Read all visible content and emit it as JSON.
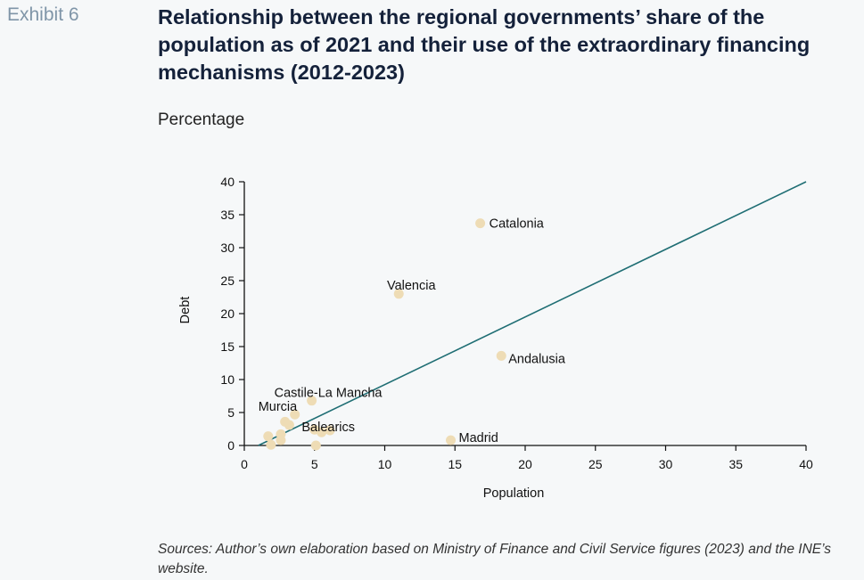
{
  "exhibit_label": "Exhibit 6",
  "title": "Relationship between the regional governments’ share of the population as of 2021 and their use of the extraordinary financing mechanisms (2012-2023)",
  "subtitle": "Percentage",
  "source": "Sources: Author’s own elaboration based on Ministry of Finance and Civil Service figures (2023) and the INE’s website.",
  "chart_data": {
    "type": "scatter",
    "xlabel": "Population",
    "ylabel": "Debt",
    "xlim": [
      0,
      40
    ],
    "ylim": [
      0,
      40
    ],
    "x_ticks": [
      0,
      5,
      10,
      15,
      20,
      25,
      30,
      35,
      40
    ],
    "y_ticks": [
      0,
      5,
      10,
      15,
      20,
      25,
      30,
      35,
      40
    ],
    "point_color": "#eedcb5",
    "line_color": "#1f6e74",
    "trend_line": {
      "from": [
        1,
        0
      ],
      "to": [
        40,
        40
      ]
    },
    "points": [
      {
        "x": 16.8,
        "y": 33.7,
        "label": "Catalonia"
      },
      {
        "x": 11.0,
        "y": 23.0,
        "label": "Valencia"
      },
      {
        "x": 18.3,
        "y": 13.6,
        "label": "Andalusia"
      },
      {
        "x": 4.8,
        "y": 6.8,
        "label": "Castile-La Mancha"
      },
      {
        "x": 3.6,
        "y": 4.7,
        "label": "Murcia"
      },
      {
        "x": 3.2,
        "y": 3.1,
        "label": "Balearics"
      },
      {
        "x": 14.7,
        "y": 0.8,
        "label": "Madrid"
      },
      {
        "x": 2.9,
        "y": 3.6,
        "label": ""
      },
      {
        "x": 1.7,
        "y": 1.4,
        "label": ""
      },
      {
        "x": 1.9,
        "y": 0.1,
        "label": ""
      },
      {
        "x": 2.6,
        "y": 1.7,
        "label": ""
      },
      {
        "x": 2.6,
        "y": 0.8,
        "label": ""
      },
      {
        "x": 5.0,
        "y": 2.4,
        "label": ""
      },
      {
        "x": 5.5,
        "y": 2.0,
        "label": ""
      },
      {
        "x": 6.1,
        "y": 2.3,
        "label": ""
      },
      {
        "x": 5.1,
        "y": 0.0,
        "label": ""
      }
    ]
  }
}
